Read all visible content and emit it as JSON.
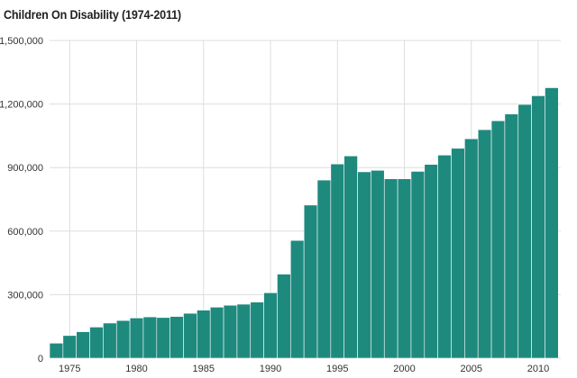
{
  "chart_data": {
    "type": "bar",
    "title": "Children On Disability (1974-2011)",
    "xlabel": "",
    "ylabel": "",
    "ylim": [
      0,
      1500000
    ],
    "y_ticks": [
      0,
      300000,
      600000,
      900000,
      1200000,
      1500000
    ],
    "y_tick_labels": [
      "0",
      "300,000",
      "600,000",
      "900,000",
      "1,200,000",
      "1,500,000"
    ],
    "x_ticks": [
      1975,
      1980,
      1985,
      1990,
      1995,
      2000,
      2005,
      2010
    ],
    "x_tick_labels": [
      "1975",
      "1980",
      "1985",
      "1990",
      "1995",
      "2000",
      "2005",
      "2010"
    ],
    "grid": true,
    "legend": "none",
    "bar_color": "#1e8a7e",
    "categories": [
      1974,
      1975,
      1976,
      1977,
      1978,
      1979,
      1980,
      1981,
      1982,
      1983,
      1984,
      1985,
      1986,
      1987,
      1988,
      1989,
      1990,
      1991,
      1992,
      1993,
      1994,
      1995,
      1996,
      1997,
      1998,
      1999,
      2000,
      2001,
      2002,
      2003,
      2004,
      2005,
      2006,
      2007,
      2008,
      2009,
      2010,
      2011
    ],
    "values": [
      71000,
      107000,
      125000,
      147000,
      166000,
      178000,
      190000,
      195000,
      192000,
      197000,
      212000,
      227000,
      241000,
      250000,
      255000,
      265000,
      309000,
      397000,
      556000,
      723000,
      841000,
      917000,
      955000,
      880000,
      887000,
      847000,
      847000,
      882000,
      915000,
      959000,
      991000,
      1036000,
      1079000,
      1121000,
      1153000,
      1198000,
      1239000,
      1277000
    ]
  }
}
